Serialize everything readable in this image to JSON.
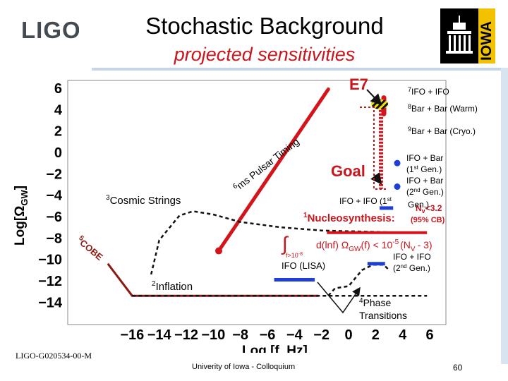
{
  "header": {
    "logo_text": "LIGO",
    "title": "Stochastic Background",
    "subtitle": "projected sensitivities",
    "iowa_logo_text": "IOWA"
  },
  "footer": {
    "doc_id": "LIGO-G020534-00-M",
    "venue": "Univerity of Iowa - Colloquium",
    "page_number": "60"
  },
  "colors": {
    "red": "#d4141b",
    "blue": "#1f3fd6",
    "black": "#111111",
    "yellow": "#f2e600"
  },
  "chart_data": {
    "type": "line",
    "xlabel": "Log [f, Hz]",
    "ylabel": "Log[Ω",
    "ylabel_sub": "GW",
    "ylabel_end": "]",
    "xlim": [
      -18,
      6
    ],
    "ylim": [
      -15,
      7
    ],
    "x_ticks": [
      {
        "v": -16,
        "label": "−16"
      },
      {
        "v": -14,
        "label": "−14"
      },
      {
        "v": -12,
        "label": "−12"
      },
      {
        "v": -10,
        "label": "−10"
      },
      {
        "v": -8,
        "label": "−8"
      },
      {
        "v": -6,
        "label": "−6"
      },
      {
        "v": -4,
        "label": "−4"
      },
      {
        "v": -2,
        "label": "−2"
      },
      {
        "v": 0,
        "label": "0"
      },
      {
        "v": 2,
        "label": "2"
      },
      {
        "v": 4,
        "label": "4"
      },
      {
        "v": 6,
        "label": "6"
      }
    ],
    "y_ticks": [
      {
        "v": 6,
        "label": "6"
      },
      {
        "v": 4,
        "label": "4"
      },
      {
        "v": 2,
        "label": "2"
      },
      {
        "v": 0,
        "label": "0"
      },
      {
        "v": -2,
        "label": "−2"
      },
      {
        "v": -4,
        "label": "−4"
      },
      {
        "v": -6,
        "label": "−6"
      },
      {
        "v": -8,
        "label": "−8"
      },
      {
        "v": -10,
        "label": "−10"
      },
      {
        "v": -12,
        "label": "−12"
      },
      {
        "v": -14,
        "label": "−14"
      }
    ],
    "series": [
      {
        "name": "Pulsar Timing",
        "style": "solid-red-thick",
        "points": [
          [
            -9.6,
            -9.2
          ],
          [
            -1.5,
            5.9
          ]
        ]
      },
      {
        "name": "COBE",
        "style": "solid-darkred",
        "points": [
          [
            -17.8,
            -10.4
          ],
          [
            -16.0,
            -13.4
          ],
          [
            -2.2,
            -13.4
          ]
        ]
      },
      {
        "name": "Cosmic Strings",
        "style": "dashed-black",
        "points": [
          [
            -14.6,
            -11.4
          ],
          [
            -14.0,
            -8.2
          ],
          [
            -12.5,
            -5.9
          ],
          [
            -11.5,
            -5.5
          ],
          [
            -10.0,
            -5.8
          ],
          [
            -8.0,
            -6.5
          ],
          [
            -5.0,
            -7.0
          ],
          [
            -2.0,
            -7.3
          ],
          [
            1.0,
            -7.4
          ],
          [
            4.0,
            -7.5
          ],
          [
            5.8,
            -7.5
          ]
        ]
      },
      {
        "name": "Inflation",
        "style": "dashed-black",
        "points": [
          [
            -16.0,
            -13.4
          ],
          [
            5.8,
            -13.4
          ]
        ]
      },
      {
        "name": "Phase Transitions",
        "style": "dashed-black",
        "points": [
          [
            -1.5,
            -13.4
          ],
          [
            -1.0,
            -12.7
          ],
          [
            0.0,
            -12.5
          ],
          [
            1.0,
            -11.0
          ],
          [
            1.8,
            -10.5
          ],
          [
            2.6,
            -10.5
          ],
          [
            3.0,
            -11.0
          ]
        ]
      },
      {
        "name": "Nucleosynthesis",
        "style": "solid-red",
        "points": [
          [
            -1.6,
            -7.5
          ],
          [
            5.8,
            -7.5
          ]
        ]
      },
      {
        "name": "Bar + Bar (Warm) / (Cryo.)",
        "style": "dotted-red-vertical",
        "points": [
          [
            2.4,
            4.3
          ],
          [
            2.4,
            -3.4
          ]
        ]
      }
    ],
    "blue_segments": [
      {
        "name": "IFO (LISA)",
        "x": [
          -5.5,
          -2.5
        ],
        "y": -11.9
      },
      {
        "name": "IFO + IFO (1st Gen.)",
        "x": [
          2.3,
          3.3
        ],
        "y": -5.2
      },
      {
        "name": "IFO + IFO (2nd Gen.)",
        "x": [
          1.4,
          2.7
        ],
        "y": -10.4
      }
    ],
    "points": [
      {
        "name": "Pulsar Timing endpoint",
        "x": -9.6,
        "y": -9.2,
        "color": "red"
      },
      {
        "name": "IFO + Bar (1st Gen.)",
        "x": 3.6,
        "y": -1.0,
        "color": "blue"
      },
      {
        "name": "IFO + Bar (2nd Gen.)",
        "x": 3.6,
        "y": -3.2,
        "color": "blue"
      },
      {
        "name": "IFO + IFO (E7)",
        "x": 2.3,
        "y": 4.5,
        "color": "yellow-hatched"
      }
    ],
    "annotations": {
      "e7": "E7",
      "goal": "Goal",
      "pulsar_sup": "6",
      "pulsar": "ms Pulsar Timing",
      "cosmic_sup": "3",
      "cosmic": "Cosmic Strings",
      "cobe_sup": "5",
      "cobe": "COBE",
      "inflation_sup": "2",
      "inflation": "Inflation",
      "phase_sup": "4",
      "phase": "Phase",
      "transitions": "Transitions",
      "lisa": "IFO (LISA)",
      "nucleo_sup": "1",
      "nucleo": "Nucleosynthesis:",
      "nv_limit": "N",
      "nv_sub": "v",
      "nv_value": "<3.2",
      "nv_cl": "(95% CB)",
      "integral": "∫",
      "integral_lower": "f>10",
      "integral_exp": "-8",
      "integral_expr": "d(lnf) Ω",
      "integral_gw": "GW",
      "integral_rhs": "(f) < 10",
      "integral_rhs_exp": "-5",
      "integral_nv": "(N",
      "integral_nv_sub": "V",
      "integral_end": "- 3)",
      "ifo_ifo_1st": "IFO + IFO (1",
      "ifo_ifo_1st_sup": "st",
      "gen_dot": "Gen.)",
      "legend_7_sup": "7",
      "legend_7": "IFO + IFO",
      "legend_8_sup": "8",
      "legend_8": "Bar + Bar (Warm)",
      "legend_9_sup": "9",
      "legend_9": "Bar + Bar (Cryo.)",
      "ifo_bar": "IFO + Bar",
      "first_gen_open": "(1",
      "st": "st",
      "gen_close": " Gen.)",
      "second_gen_open": "(2",
      "nd": "nd",
      "ifo_ifo": "IFO + IFO",
      "second_gen_open2": "(2",
      "nd2": "nd",
      "gen_close2": " Gen.)"
    }
  }
}
